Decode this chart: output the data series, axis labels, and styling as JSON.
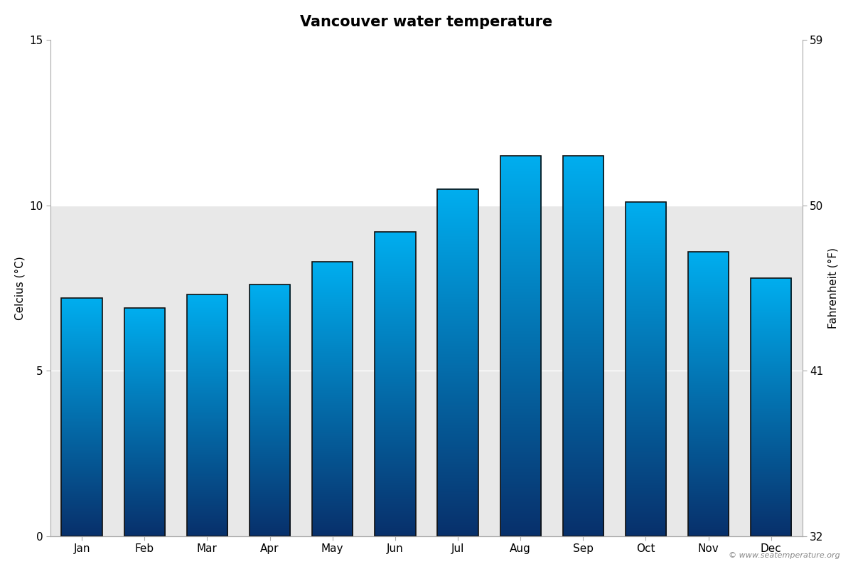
{
  "title": "Vancouver water temperature",
  "months": [
    "Jan",
    "Feb",
    "Mar",
    "Apr",
    "May",
    "Jun",
    "Jul",
    "Aug",
    "Sep",
    "Oct",
    "Nov",
    "Dec"
  ],
  "celsius": [
    7.2,
    6.9,
    7.3,
    7.6,
    8.3,
    9.2,
    10.5,
    11.5,
    11.5,
    10.1,
    8.6,
    7.8
  ],
  "ylim_celsius": [
    0,
    15
  ],
  "yticks_celsius": [
    0,
    5,
    10,
    15
  ],
  "ylim_fahrenheit": [
    32,
    59
  ],
  "yticks_fahrenheit": [
    32,
    41,
    50,
    59
  ],
  "ylabel_left": "Celcius (°C)",
  "ylabel_right": "Fahrenheit (°F)",
  "color_bottom": "#08306b",
  "color_top": "#00aeef",
  "bg_gray": "#e8e8e8",
  "bg_white": "#ffffff",
  "bg_split_at": 10.0,
  "bar_edge_color": "#111111",
  "watermark": "© www.seatemperature.org",
  "title_fontsize": 15,
  "label_fontsize": 11,
  "tick_fontsize": 11,
  "bar_width": 0.65
}
